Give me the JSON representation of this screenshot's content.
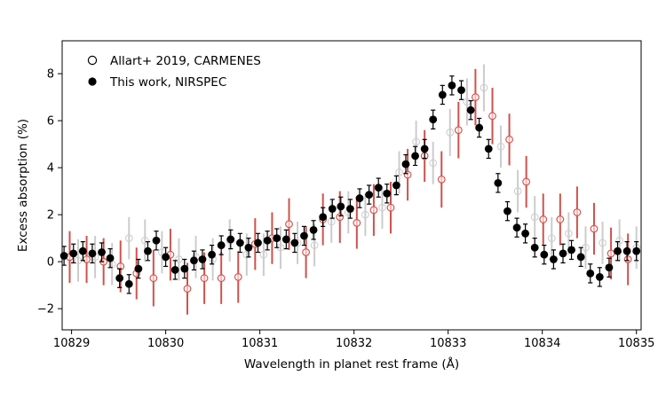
{
  "chart_data": {
    "type": "scatter",
    "xlabel": "Wavelength in planet rest frame (Å)",
    "ylabel": "Excess absorption (%)",
    "xlim": [
      10828.9,
      10835.05
    ],
    "ylim": [
      -2.9,
      9.4
    ],
    "xticks": [
      10829,
      10830,
      10831,
      10832,
      10833,
      10834,
      10835
    ],
    "yticks": [
      -2,
      0,
      2,
      4,
      6,
      8
    ],
    "grid": false,
    "legend_placement": "top-left",
    "colors": {
      "carmenes_marker": "#d9534f",
      "carmenes_err_light": "#cccccc",
      "carmenes_err_red": "#c9403a",
      "nirspec": "#000000"
    },
    "series": [
      {
        "name": "Allart+ 2019, CARMENES",
        "marker": "open-circle",
        "x": [
          10828.98,
          10829.16,
          10829.34,
          10829.52,
          10829.69,
          10829.87,
          10830.05,
          10830.23,
          10830.41,
          10830.59,
          10830.77,
          10830.95,
          10831.13,
          10831.31,
          10831.49,
          10831.67,
          10831.85,
          10832.03,
          10832.21,
          10832.39,
          10832.57,
          10832.75,
          10832.93,
          10833.11,
          10833.29,
          10833.47,
          10833.65,
          10833.83,
          10834.01,
          10834.19,
          10834.37,
          10834.55,
          10834.73,
          10834.91
        ],
        "y": [
          0.2,
          0.1,
          0.0,
          -0.2,
          -0.5,
          -0.7,
          0.3,
          -1.15,
          -0.7,
          -0.7,
          -0.65,
          0.75,
          1.0,
          1.6,
          0.4,
          1.8,
          1.9,
          1.65,
          2.2,
          2.3,
          3.7,
          4.5,
          3.5,
          5.6,
          7.0,
          6.2,
          5.2,
          3.4,
          1.8,
          1.8,
          2.1,
          1.4,
          0.35,
          0.1
        ],
        "yerr": [
          1.1,
          1.0,
          1.0,
          1.1,
          1.1,
          1.2,
          1.1,
          1.1,
          1.1,
          1.1,
          1.1,
          1.1,
          1.1,
          1.1,
          1.1,
          1.1,
          1.1,
          1.1,
          1.1,
          1.1,
          1.1,
          1.1,
          1.2,
          1.2,
          1.2,
          1.2,
          1.1,
          1.1,
          1.1,
          1.1,
          1.1,
          1.1,
          1.1,
          1.1
        ]
      },
      {
        "name": "Allart+ 2019, CARMENES",
        "marker": "open-circle-light",
        "x": [
          10829.07,
          10829.25,
          10829.43,
          10829.61,
          10829.78,
          10829.96,
          10830.14,
          10830.32,
          10830.5,
          10830.68,
          10830.86,
          10831.04,
          10831.22,
          10831.4,
          10831.58,
          10831.76,
          10831.94,
          10832.12,
          10832.3,
          10832.48,
          10832.66,
          10832.84,
          10833.02,
          10833.2,
          10833.38,
          10833.56,
          10833.74,
          10833.92,
          10834.1,
          10834.28,
          10834.46,
          10834.64,
          10834.82,
          10835.0
        ],
        "y": [
          0.05,
          0.2,
          -0.1,
          1.0,
          0.9,
          0.4,
          0.1,
          0.2,
          0.1,
          0.9,
          0.3,
          0.3,
          0.6,
          0.8,
          0.7,
          1.7,
          2.1,
          2.0,
          2.3,
          3.8,
          5.1,
          4.2,
          5.5,
          6.8,
          7.4,
          4.9,
          3.0,
          1.9,
          1.0,
          1.2,
          0.6,
          0.8,
          0.9,
          0.6
        ],
        "yerr": [
          0.9,
          0.9,
          0.9,
          0.9,
          0.9,
          0.9,
          0.9,
          0.9,
          0.9,
          0.9,
          0.9,
          0.9,
          0.9,
          0.9,
          0.9,
          0.9,
          0.9,
          0.9,
          0.9,
          0.9,
          0.9,
          0.9,
          1.0,
          1.0,
          1.0,
          0.9,
          0.9,
          0.9,
          0.9,
          0.9,
          0.9,
          0.9,
          0.9,
          0.9
        ]
      },
      {
        "name": "This work, NIRSPEC",
        "marker": "filled-circle",
        "x": [
          10828.92,
          10829.02,
          10829.12,
          10829.22,
          10829.32,
          10829.41,
          10829.51,
          10829.61,
          10829.71,
          10829.81,
          10829.9,
          10830.0,
          10830.1,
          10830.2,
          10830.3,
          10830.39,
          10830.49,
          10830.59,
          10830.69,
          10830.79,
          10830.88,
          10830.98,
          10831.08,
          10831.18,
          10831.28,
          10831.37,
          10831.47,
          10831.57,
          10831.67,
          10831.77,
          10831.86,
          10831.96,
          10832.06,
          10832.16,
          10832.26,
          10832.35,
          10832.45,
          10832.55,
          10832.65,
          10832.75,
          10832.84,
          10832.94,
          10833.04,
          10833.14,
          10833.24,
          10833.33,
          10833.43,
          10833.53,
          10833.63,
          10833.73,
          10833.82,
          10833.92,
          10834.02,
          10834.12,
          10834.22,
          10834.31,
          10834.41,
          10834.51,
          10834.61,
          10834.71,
          10834.8,
          10834.9,
          10835.0
        ],
        "y": [
          0.25,
          0.35,
          0.45,
          0.35,
          0.4,
          0.15,
          -0.7,
          -0.95,
          -0.3,
          0.45,
          0.9,
          0.2,
          -0.35,
          -0.3,
          0.05,
          0.1,
          0.3,
          0.7,
          0.95,
          0.8,
          0.6,
          0.8,
          0.9,
          1.0,
          0.95,
          0.8,
          1.1,
          1.35,
          1.9,
          2.25,
          2.35,
          2.25,
          2.7,
          2.85,
          3.15,
          2.9,
          3.25,
          4.15,
          4.5,
          4.8,
          6.05,
          7.1,
          7.5,
          7.3,
          6.45,
          5.7,
          4.8,
          3.35,
          2.15,
          1.45,
          1.2,
          0.6,
          0.3,
          0.1,
          0.35,
          0.5,
          0.2,
          -0.5,
          -0.65,
          -0.25,
          0.45,
          0.45,
          0.45
        ],
        "yerr": [
          0.4,
          0.4,
          0.4,
          0.4,
          0.4,
          0.4,
          0.4,
          0.4,
          0.4,
          0.4,
          0.4,
          0.4,
          0.4,
          0.4,
          0.4,
          0.4,
          0.4,
          0.4,
          0.4,
          0.4,
          0.4,
          0.4,
          0.4,
          0.4,
          0.4,
          0.4,
          0.4,
          0.4,
          0.4,
          0.4,
          0.4,
          0.4,
          0.4,
          0.4,
          0.4,
          0.4,
          0.4,
          0.4,
          0.4,
          0.4,
          0.4,
          0.4,
          0.4,
          0.4,
          0.4,
          0.4,
          0.4,
          0.4,
          0.4,
          0.4,
          0.4,
          0.4,
          0.4,
          0.4,
          0.4,
          0.4,
          0.4,
          0.4,
          0.4,
          0.4,
          0.4,
          0.4,
          0.4
        ]
      }
    ],
    "legend": [
      {
        "label": "Allart+ 2019, CARMENES",
        "marker": "open-circle"
      },
      {
        "label": "This work, NIRSPEC",
        "marker": "filled-circle"
      }
    ]
  }
}
